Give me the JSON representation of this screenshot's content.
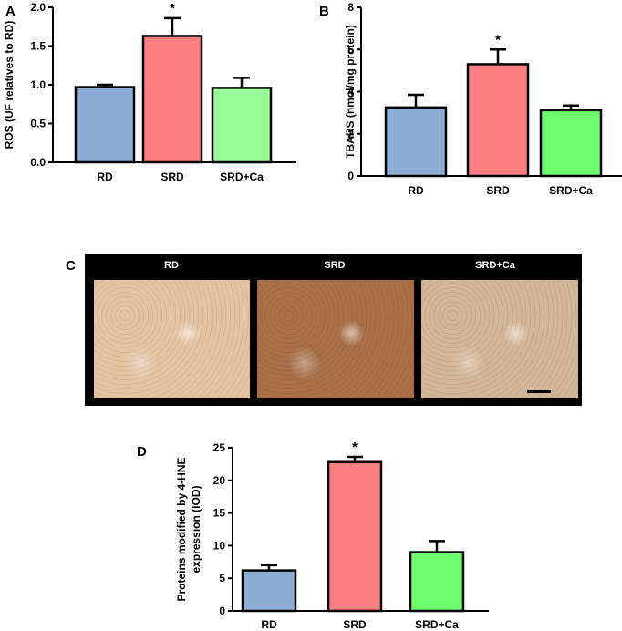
{
  "chart_data": [
    {
      "type": "bar",
      "panel": "A",
      "ylabel": "ROS (UF relatives to RD)",
      "categories": [
        "RD",
        "SRD",
        "SRD+Ca"
      ],
      "values": [
        0.97,
        1.63,
        0.96
      ],
      "errors": [
        0.03,
        0.23,
        0.13
      ],
      "significance": [
        "",
        "*",
        ""
      ],
      "ylim": [
        0,
        2.0
      ],
      "yticks": [
        0,
        0.5,
        1.0,
        1.5,
        2.0
      ],
      "ytick_labels": [
        "0.0",
        "0.5",
        "1.0",
        "1.5",
        "2.0"
      ],
      "colors": [
        "#8dadd6",
        "#fa7f80",
        "#9afe9a"
      ]
    },
    {
      "type": "bar",
      "panel": "B",
      "ylabel": "TBARS (nmol/mg protein)",
      "categories": [
        "RD",
        "SRD",
        "SRD+Ca"
      ],
      "values": [
        3.25,
        5.3,
        3.12
      ],
      "errors": [
        0.6,
        0.7,
        0.22
      ],
      "significance": [
        "",
        "*",
        ""
      ],
      "ylim": [
        0,
        8
      ],
      "yticks": [
        0,
        2,
        4,
        6,
        8
      ],
      "ytick_labels": [
        "0",
        "2",
        "4",
        "6",
        "8"
      ],
      "colors": [
        "#8dadd6",
        "#fa7f80",
        "#6efb6e"
      ]
    },
    {
      "type": "bar",
      "panel": "D",
      "ylabel": [
        "Proteins modified by 4-HNE",
        "expression (IOD)"
      ],
      "categories": [
        "RD",
        "SRD",
        "SRD+Ca"
      ],
      "values": [
        6.2,
        22.8,
        9.0
      ],
      "errors": [
        0.8,
        0.8,
        1.7
      ],
      "significance": [
        "",
        "*",
        ""
      ],
      "ylim": [
        0,
        25
      ],
      "yticks": [
        0,
        5,
        10,
        15,
        20,
        25
      ],
      "ytick_labels": [
        "0",
        "5",
        "10",
        "15",
        "20",
        "25"
      ],
      "colors": [
        "#8dadd6",
        "#fa7f80",
        "#6efb6e"
      ]
    }
  ],
  "micrographs": {
    "panel": "C",
    "labels": [
      "RD",
      "SRD",
      "SRD+Ca"
    ],
    "tile_colors": [
      "#e4c3a3",
      "#a87048",
      "#d3b597"
    ]
  }
}
